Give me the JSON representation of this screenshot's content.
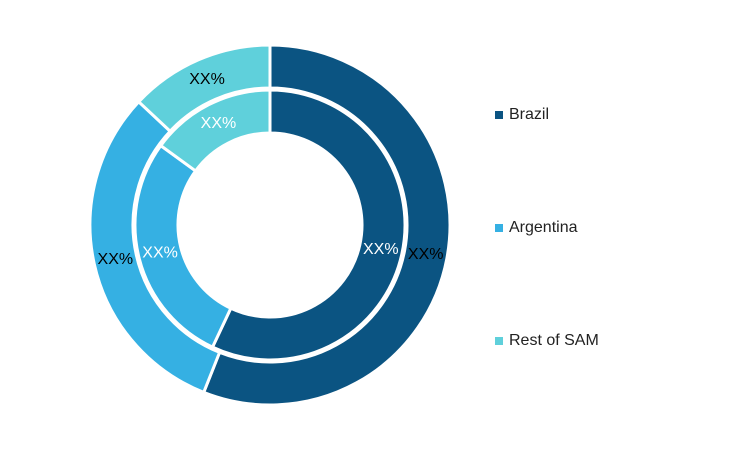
{
  "chart_data": {
    "type": "donut",
    "categories": [
      "Brazil",
      "Argentina",
      "Rest of SAM"
    ],
    "colors": [
      "#0b5482",
      "#35b0e3",
      "#5fd0db"
    ],
    "series": [
      {
        "values": [
          56,
          31,
          13
        ],
        "value_labels": [
          "XX%",
          "XX%",
          "XX%"
        ]
      },
      {
        "values": [
          57,
          28,
          15
        ],
        "value_labels": [
          "XX%",
          "XX%",
          "XX%"
        ]
      }
    ],
    "legend": "right"
  }
}
